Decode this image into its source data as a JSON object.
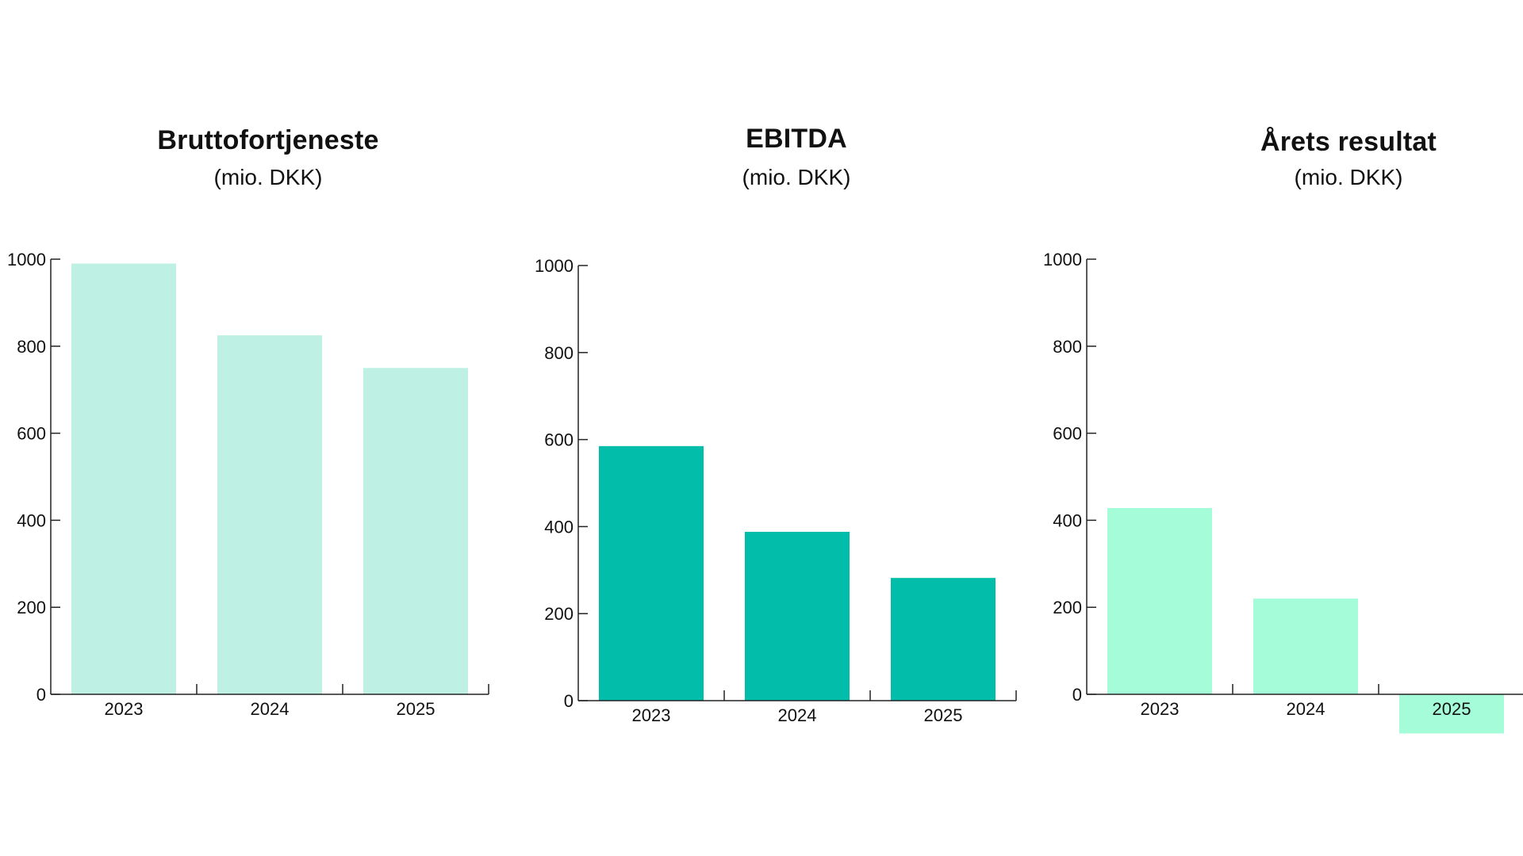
{
  "chart_data": [
    {
      "type": "bar",
      "title": "Bruttofortjeneste",
      "subtitle": "(mio. DKK)",
      "categories": [
        "2023",
        "2024",
        "2025"
      ],
      "values": [
        990,
        825,
        750
      ],
      "ylim": [
        0,
        1000
      ],
      "yticks": [
        "0",
        "200",
        "400",
        "600",
        "800",
        "1000"
      ],
      "color": "#BFF0E4",
      "grid": false
    },
    {
      "type": "bar",
      "title": "EBITDA",
      "subtitle": "(mio. DKK)",
      "categories": [
        "2023",
        "2024",
        "2025"
      ],
      "values": [
        585,
        388,
        282
      ],
      "ylim": [
        0,
        1000
      ],
      "yticks": [
        "0",
        "200",
        "400",
        "600",
        "800",
        "1000"
      ],
      "color": "#02BDAA",
      "grid": false
    },
    {
      "type": "bar",
      "title": "Årets resultat",
      "subtitle": "(mio. DKK)",
      "categories": [
        "2023",
        "2024",
        "2025"
      ],
      "values": [
        428,
        220,
        -90
      ],
      "ylim": [
        0,
        1000
      ],
      "yticks": [
        "0",
        "200",
        "400",
        "600",
        "800",
        "1000"
      ],
      "color": "#A4FCD9",
      "grid": false
    }
  ]
}
